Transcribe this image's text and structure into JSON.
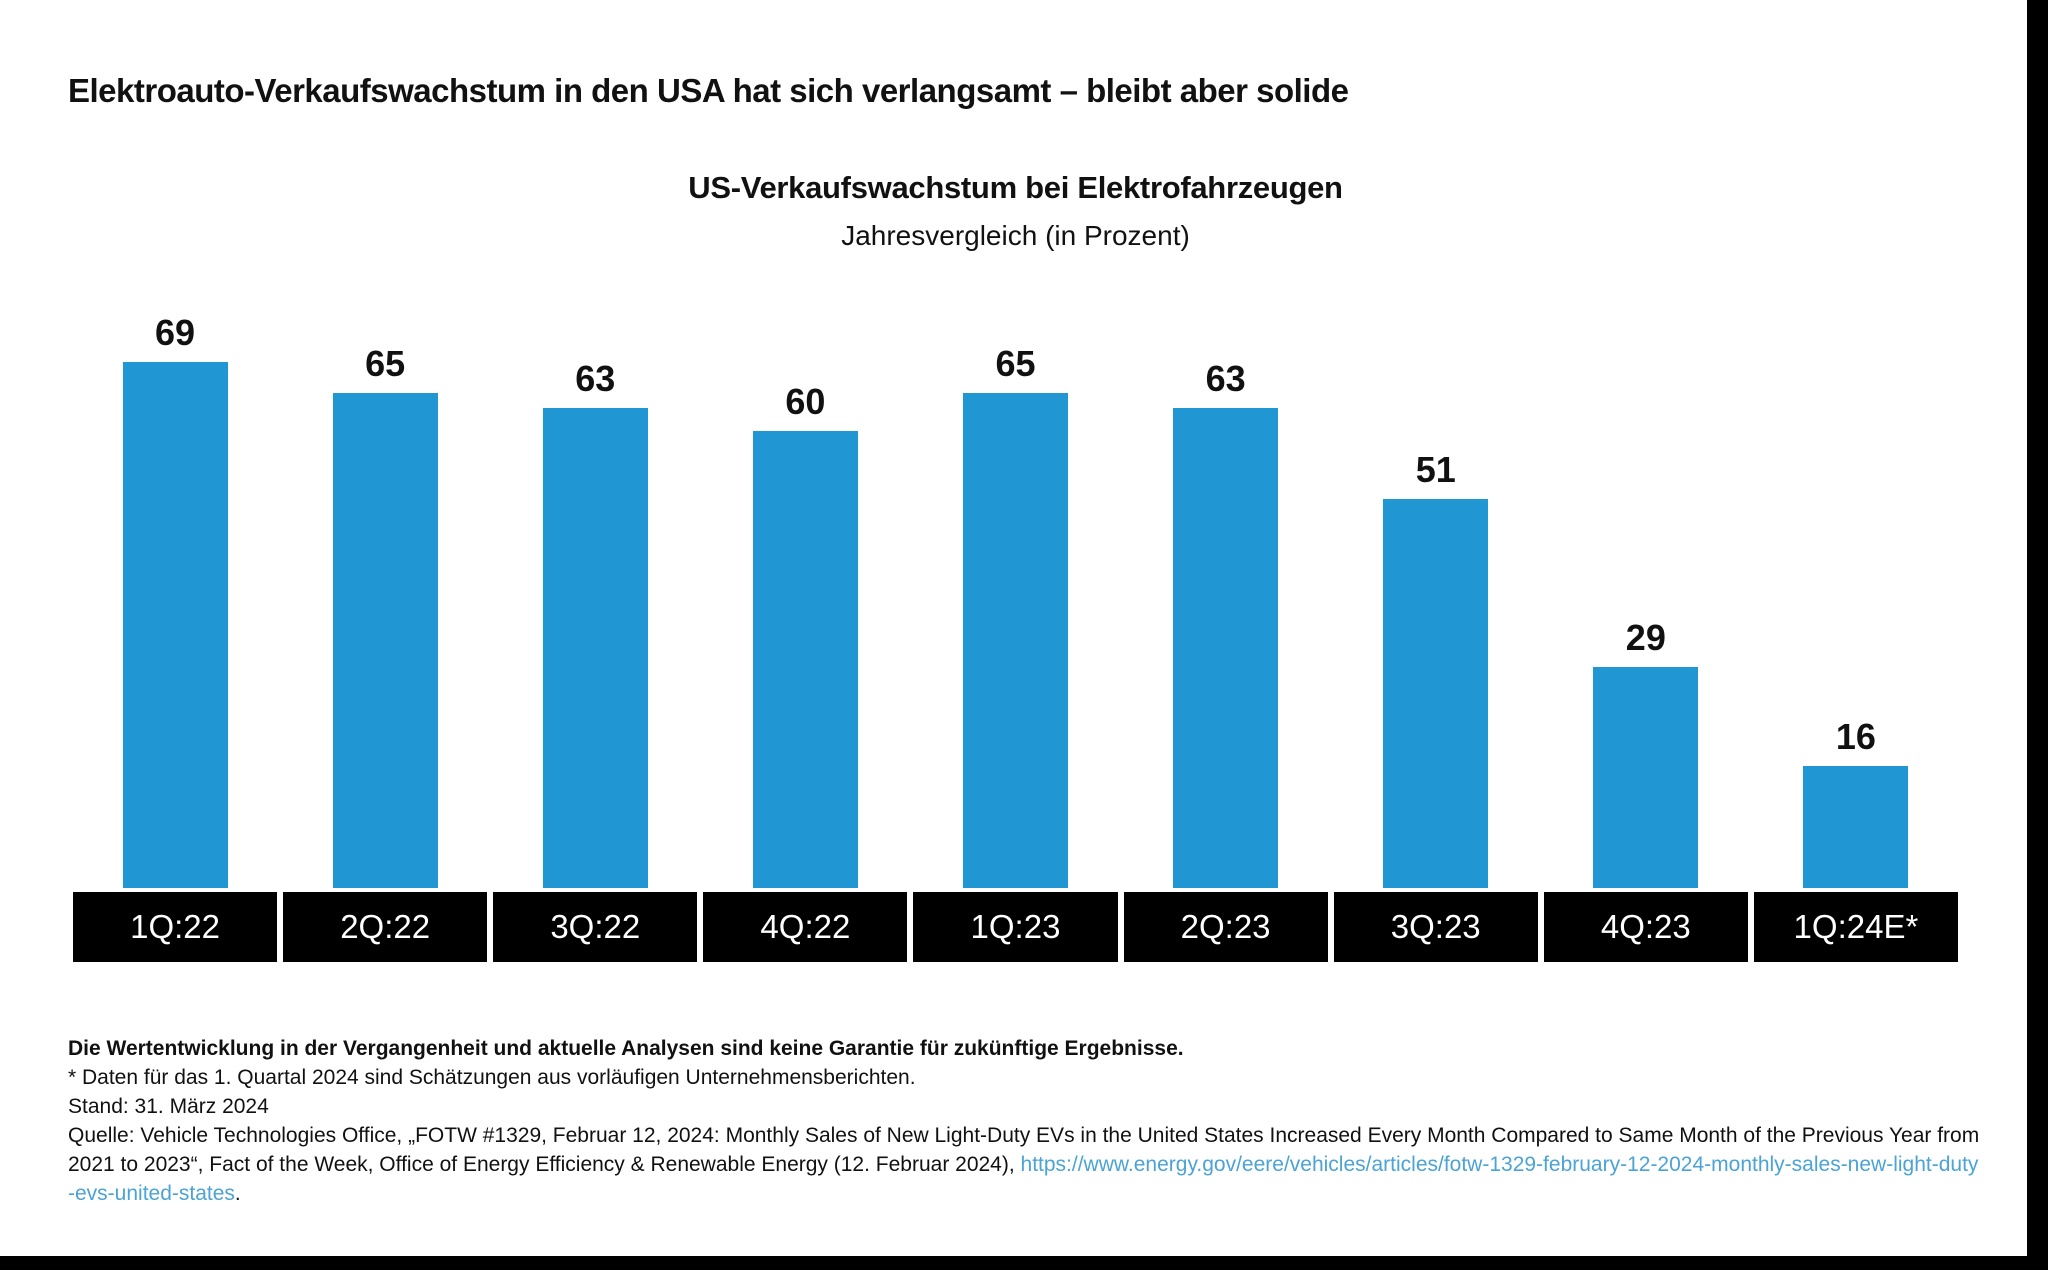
{
  "page": {
    "title": "Elektroauto-Verkaufswachstum in den USA hat sich verlangsamt – bleibt aber solide"
  },
  "chart_data": {
    "type": "bar",
    "title": "US-Verkaufswachstum bei Elektrofahrzeugen",
    "subtitle": "Jahresvergleich (in Prozent)",
    "categories": [
      "1Q:22",
      "2Q:22",
      "3Q:22",
      "4Q:22",
      "1Q:23",
      "2Q:23",
      "3Q:23",
      "4Q:23",
      "1Q:24E*"
    ],
    "values": [
      69,
      65,
      63,
      60,
      65,
      63,
      51,
      29,
      16
    ],
    "xlabel": "",
    "ylabel": "",
    "ylim": [
      0,
      69
    ],
    "grid": false,
    "legend": false,
    "value_labels_shown": true,
    "category_label_style": "white-on-black"
  },
  "footnotes": {
    "disclaimer": "Die Wertentwicklung in der Vergangenheit und aktuelle Analysen sind keine Garantie für zukünftige Ergebnisse.",
    "estimate_note": "* Daten für das 1. Quartal 2024 sind Schätzungen aus vorläufigen Unternehmensberichten.",
    "as_of": "Stand: 31. März 2024",
    "source_prefix": "Quelle: Vehicle Technologies Office, „FOTW #1329, Februar 12, 2024: Monthly Sales of New Light-Duty EVs in the United States Increased Every Month Compared to Same Month of the Previous Year from 2021 to 2023“, Fact of the Week, Office of Energy Efficiency & Renewable Energy (12. Februar 2024), ",
    "source_link": "https://www.energy.gov/eere/vehicles/articles/fotw-1329-february-12-2024-monthly-sales-new-light-duty-evs-united-states",
    "source_suffix": "."
  },
  "colors": {
    "bar": "#2097d3",
    "link": "#4ba3d6",
    "category_label_bg": "#000000",
    "category_label_text": "#ffffff"
  }
}
